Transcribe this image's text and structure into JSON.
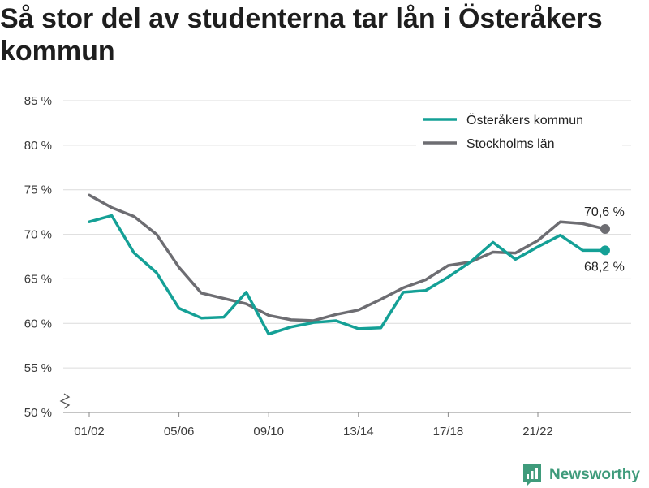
{
  "chart_data": {
    "type": "line",
    "title": "Så stor del av studenterna tar lån i Österåkers kommun",
    "grid": "horizontal",
    "legend": "top-right",
    "y_axis": {
      "min": 50,
      "max": 85,
      "axis_break": true,
      "ticks": [
        {
          "value": 85,
          "label": "85 %"
        },
        {
          "value": 80,
          "label": "80 %"
        },
        {
          "value": 75,
          "label": "75 %"
        },
        {
          "value": 70,
          "label": "70 %"
        },
        {
          "value": 65,
          "label": "65 %"
        },
        {
          "value": 60,
          "label": "60 %"
        },
        {
          "value": 55,
          "label": "55 %"
        },
        {
          "value": 50,
          "label": "50 %"
        }
      ]
    },
    "x_tick_labels": [
      "01/02",
      "05/06",
      "09/10",
      "13/14",
      "17/18",
      "21/22"
    ],
    "series": [
      {
        "name": "Österåkers kommun",
        "color": "#14a096",
        "values": [
          71.4,
          72.1,
          67.9,
          65.7,
          61.7,
          60.6,
          60.7,
          63.5,
          58.8,
          59.6,
          60.1,
          60.3,
          59.4,
          59.5,
          63.5,
          63.7,
          65.2,
          66.9,
          69.1,
          67.2,
          68.6,
          69.9,
          68.2,
          68.2
        ],
        "end_label": "68,2 %"
      },
      {
        "name": "Stockholms län",
        "color": "#6d6d72",
        "values": [
          74.4,
          73.0,
          72.0,
          70.0,
          66.3,
          63.4,
          62.8,
          62.2,
          60.9,
          60.4,
          60.3,
          61.0,
          61.5,
          62.7,
          64.0,
          64.9,
          66.5,
          66.9,
          68.0,
          67.9,
          69.3,
          71.4,
          71.2,
          70.6
        ],
        "end_label": "70,6 %"
      }
    ]
  },
  "logo": {
    "text": "Newsworthy",
    "icon": "bar-chart-logo-icon",
    "color": "#3f9b7b"
  }
}
